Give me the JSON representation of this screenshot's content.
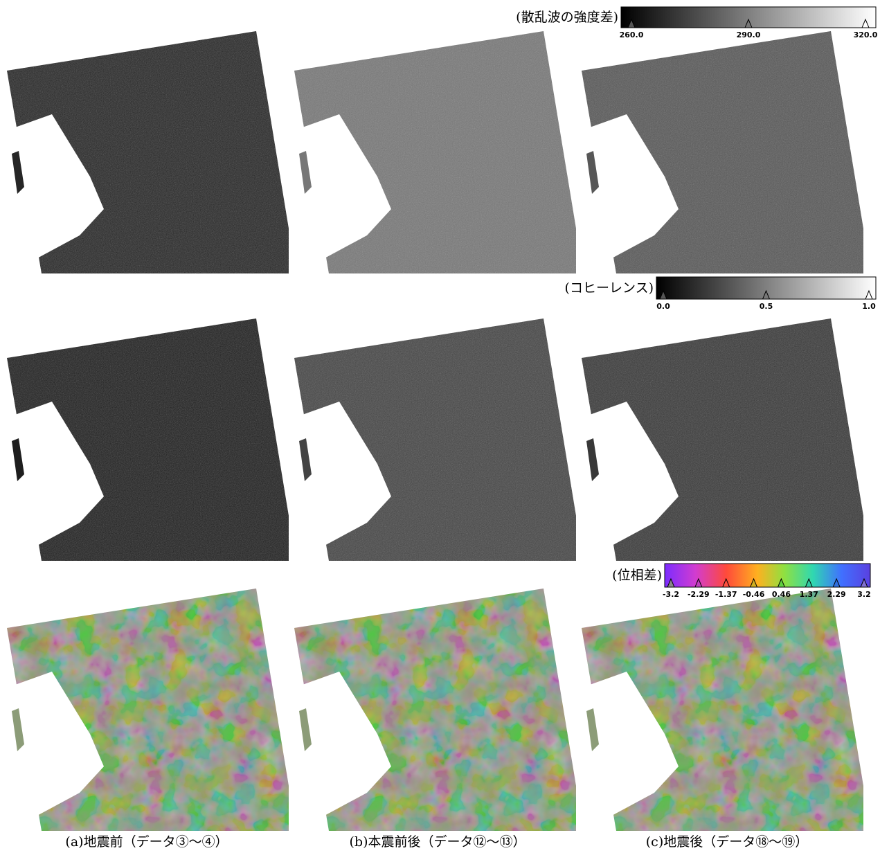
{
  "colorbars": [
    {
      "label": "(散乱波の強度差)",
      "ticks": [
        "260.0",
        "290.0",
        "320.0"
      ]
    },
    {
      "label": "(コヒーレンス)",
      "ticks": [
        "0.0",
        "0.5",
        "1.0"
      ]
    },
    {
      "label": "(位相差)",
      "ticks": [
        "-3.2",
        "-2.29",
        "-1.37",
        "-0.46",
        "0.46",
        "1.37",
        "2.29",
        "3.2"
      ]
    }
  ],
  "captions": [
    "(a)地震前（データ③～④）",
    "(b)本震前後（データ⑫～⑬）",
    "(c)地震後（データ⑱～⑲）"
  ]
}
